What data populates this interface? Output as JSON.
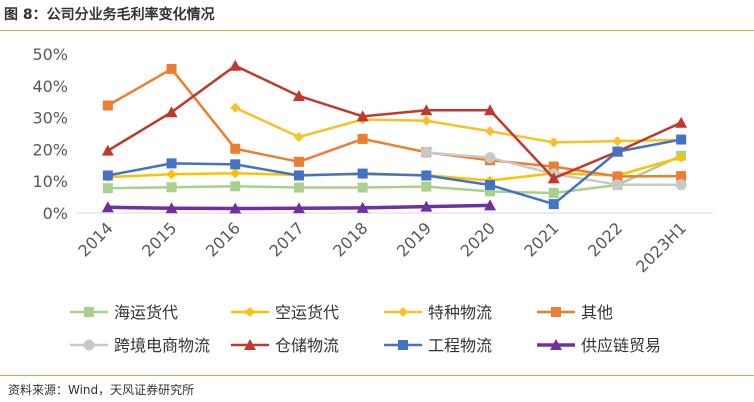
{
  "figure": {
    "title": "图 8：公司分业务毛利率变化情况",
    "source": "资料来源：Wind，天风证券研究所"
  },
  "chart_data": {
    "type": "line",
    "title": "",
    "xlabel": "",
    "ylabel": "",
    "categories": [
      "2014",
      "2015",
      "2016",
      "2017",
      "2018",
      "2019",
      "2020",
      "2021",
      "2022",
      "2023H1"
    ],
    "ylim": [
      0,
      50
    ],
    "yticks": [
      "0%",
      "10%",
      "20%",
      "30%",
      "40%",
      "50%"
    ],
    "grid": false,
    "legend_position": "bottom",
    "series": [
      {
        "name": "海运货代",
        "color": "#a9d18e",
        "marker": "square",
        "values": [
          7.8,
          8.1,
          8.4,
          8.0,
          8.0,
          8.3,
          6.8,
          6.3,
          8.8,
          18.0
        ]
      },
      {
        "name": "空运货代",
        "color": "#ffc000",
        "marker": "diamond",
        "values": [
          11.3,
          12.2,
          12.5,
          12.0,
          12.2,
          11.9,
          10.2,
          12.5,
          11.8,
          17.5
        ]
      },
      {
        "name": "特种物流",
        "color": "#f6c12a",
        "marker": "diamond",
        "values": [
          null,
          null,
          33.1,
          23.9,
          29.4,
          29.0,
          25.7,
          22.2,
          22.6,
          23.0
        ]
      },
      {
        "name": "其他",
        "color": "#ed7d31",
        "marker": "square",
        "values": [
          33.8,
          45.3,
          20.2,
          16.1,
          23.3,
          19.1,
          16.6,
          14.6,
          11.5,
          11.6
        ]
      },
      {
        "name": "跨境电商物流",
        "color": "#c9c9c9",
        "marker": "circle",
        "values": [
          null,
          null,
          null,
          null,
          null,
          19.0,
          17.4,
          12.3,
          8.9,
          8.9
        ]
      },
      {
        "name": "仓储物流",
        "color": "#c0392b",
        "marker": "triangle",
        "values": [
          19.6,
          31.7,
          46.3,
          36.8,
          30.4,
          32.3,
          32.3,
          10.9,
          19.3,
          28.4
        ]
      },
      {
        "name": "工程物流",
        "color": "#4472c4",
        "marker": "square",
        "values": [
          11.8,
          15.6,
          15.3,
          11.8,
          12.4,
          11.8,
          8.8,
          2.8,
          19.3,
          23.1
        ]
      },
      {
        "name": "供应链贸易",
        "color": "#7030a0",
        "marker": "triangle",
        "values": [
          1.8,
          1.5,
          1.4,
          1.5,
          1.6,
          2.0,
          2.4,
          null,
          null,
          null
        ]
      }
    ]
  }
}
